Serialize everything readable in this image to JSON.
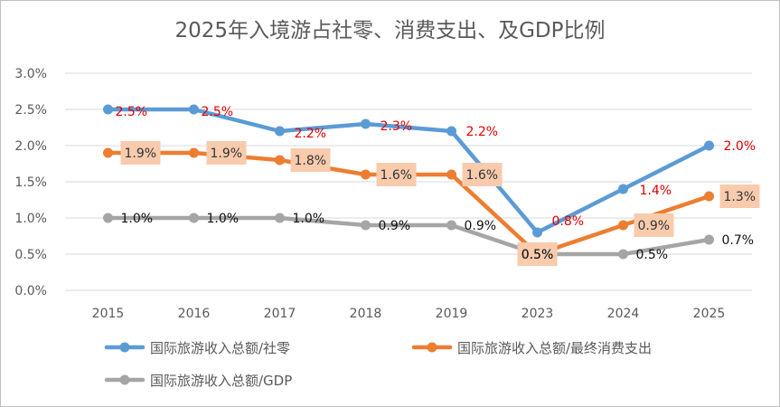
{
  "chart_data": {
    "type": "line",
    "title": "2025年入境游占社零、消费支出、及GDP比例",
    "categories": [
      "2015",
      "2016",
      "2017",
      "2018",
      "2019",
      "2023",
      "2024",
      "2025"
    ],
    "ylim": [
      0,
      3.0
    ],
    "yticks": [
      "0.0%",
      "0.5%",
      "1.0%",
      "1.5%",
      "2.0%",
      "2.5%",
      "3.0%"
    ],
    "grid": true,
    "legend_position": "bottom",
    "series": [
      {
        "name": "国际旅游收入总额/社零",
        "color": "#5B9BD5",
        "label_color": "#E00000",
        "label_box": false,
        "values": [
          2.5,
          2.5,
          2.2,
          2.3,
          2.2,
          0.8,
          1.4,
          2.0
        ],
        "labels": [
          "2.5%",
          "2.5%",
          "2.2%",
          "2.3%",
          "2.2%",
          "0.8%",
          "1.4%",
          "2.0%"
        ]
      },
      {
        "name": "国际旅游收入总额/最终消费支出",
        "color": "#ED7D31",
        "label_color": "#333333",
        "label_box": true,
        "label_box_color": "#F8CBAD",
        "values": [
          1.9,
          1.9,
          1.8,
          1.6,
          1.6,
          0.5,
          0.9,
          1.3
        ],
        "labels": [
          "1.9%",
          "1.9%",
          "1.8%",
          "1.6%",
          "1.6%",
          "0.5%",
          "0.9%",
          "1.3%"
        ]
      },
      {
        "name": "国际旅游收入总额/GDP",
        "color": "#A5A5A5",
        "label_color": "#111111",
        "label_box": false,
        "values": [
          1.0,
          1.0,
          1.0,
          0.9,
          0.9,
          0.5,
          0.5,
          0.7
        ],
        "labels": [
          "1.0%",
          "1.0%",
          "1.0%",
          "0.9%",
          "0.9%",
          "0.5%",
          "0.5%",
          "0.7%"
        ]
      }
    ]
  }
}
